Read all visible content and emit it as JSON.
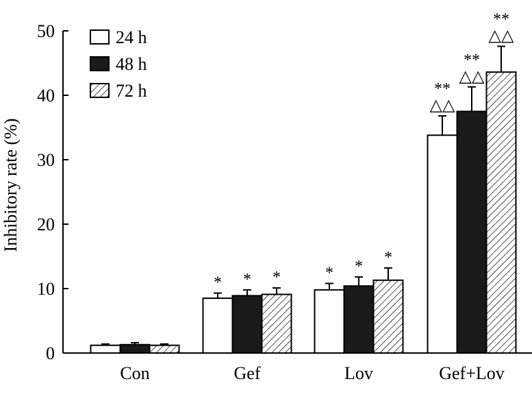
{
  "chart_data": {
    "type": "bar",
    "title": "",
    "xlabel": "",
    "ylabel": "Inhibitory rate (%)",
    "ylim": [
      0,
      50
    ],
    "yticks": [
      0,
      10,
      20,
      30,
      40,
      50
    ],
    "categories": [
      "Con",
      "Gef",
      "Lov",
      "Gef+Lov"
    ],
    "series": [
      {
        "name": "24 h",
        "fill": "white",
        "values": [
          1.2,
          8.5,
          9.8,
          33.8
        ],
        "errors": [
          0.2,
          0.8,
          1.0,
          3.0
        ],
        "annotations": [
          "",
          "*",
          "*",
          "**\n△△"
        ]
      },
      {
        "name": "48 h",
        "fill": "black",
        "values": [
          1.3,
          8.9,
          10.4,
          37.5
        ],
        "errors": [
          0.3,
          0.9,
          1.4,
          3.8
        ],
        "annotations": [
          "",
          "*",
          "*",
          "**\n△△"
        ]
      },
      {
        "name": "72 h",
        "fill": "hatch",
        "values": [
          1.2,
          9.1,
          11.3,
          43.6
        ],
        "errors": [
          0.2,
          1.0,
          1.9,
          4.0
        ],
        "annotations": [
          "",
          "*",
          "*",
          "**\n△△"
        ]
      }
    ],
    "legend": {
      "position": "top-left"
    },
    "grid": false
  },
  "colors": {
    "axis": "#000000",
    "bar_dark": "#1a1a1a",
    "bar_light": "#ffffff"
  }
}
